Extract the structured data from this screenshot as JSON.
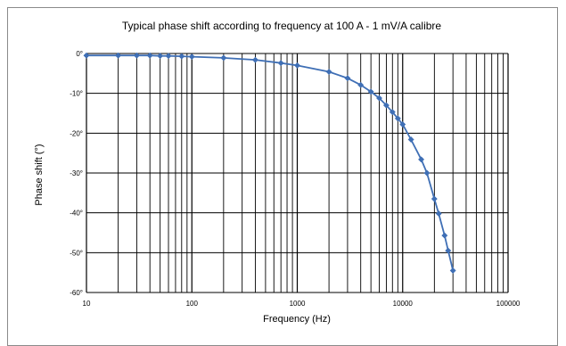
{
  "chart_data": {
    "type": "line",
    "title": "Typical phase shift according to frequency at 100 A - 1 mV/A calibre",
    "xlabel": "Frequency (Hz)",
    "ylabel": "Phase shift (°)",
    "x_scale": "log",
    "xlim": [
      10,
      100000
    ],
    "ylim": [
      -60,
      0
    ],
    "x_ticks": [
      10,
      100,
      1000,
      10000,
      100000
    ],
    "x_tick_labels": [
      "10",
      "100",
      "1000",
      "10000",
      "100000"
    ],
    "y_ticks": [
      0,
      -10,
      -20,
      -30,
      -40,
      -50,
      -60
    ],
    "y_tick_labels": [
      "0°",
      "-10°",
      "-20°",
      "-30°",
      "-40°",
      "-50°",
      "-60°"
    ],
    "grid": true,
    "legend": "none",
    "series": [
      {
        "color": "#3f6fb5",
        "marker": "diamond",
        "x": [
          10,
          20,
          30,
          40,
          50,
          60,
          80,
          100,
          200,
          400,
          700,
          1000,
          2000,
          3000,
          4000,
          5000,
          6000,
          7000,
          8000,
          9000,
          10000,
          12000,
          15000,
          17000,
          20000,
          22000,
          25000,
          27000,
          30000
        ],
        "y": [
          -0.5,
          -0.5,
          -0.5,
          -0.5,
          -0.6,
          -0.6,
          -0.7,
          -0.8,
          -1.1,
          -1.6,
          -2.4,
          -3.0,
          -4.6,
          -6.2,
          -7.9,
          -9.6,
          -11.2,
          -13.0,
          -14.7,
          -16.3,
          -17.8,
          -21.6,
          -26.6,
          -30.0,
          -36.5,
          -40.2,
          -45.7,
          -49.5,
          -54.5
        ]
      }
    ]
  }
}
